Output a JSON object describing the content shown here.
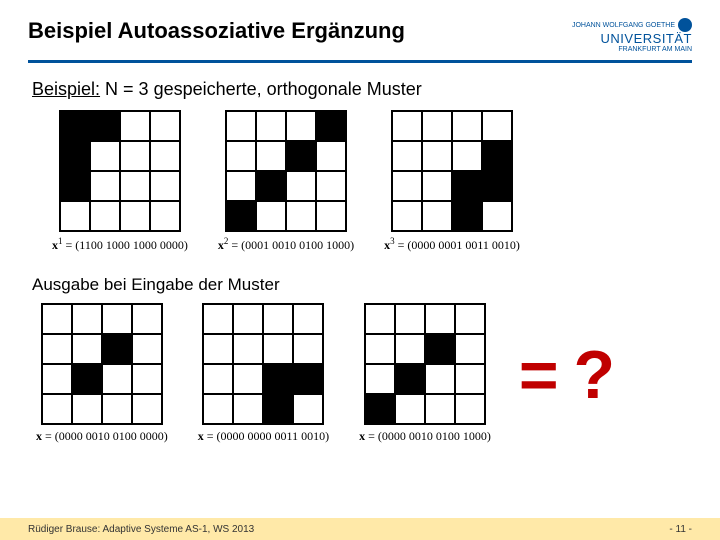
{
  "header": {
    "title": "Beispiel Autoassoziative Ergänzung",
    "logo_line1": "JOHANN WOLFGANG GOETHE",
    "logo_uni": "UNIVERSITÄT",
    "logo_city": "FRANKFURT AM MAIN"
  },
  "subtitle": {
    "label": "Beispiel:",
    "text": " N = 3 gespeicherte, orthogonale Muster"
  },
  "top_grids": [
    {
      "cells": [
        1,
        1,
        0,
        0,
        1,
        0,
        0,
        0,
        1,
        0,
        0,
        0,
        0,
        0,
        0,
        0
      ],
      "caption_pre": "x",
      "caption_sup": "1",
      "caption_post": " = (1100 1000 1000 0000)"
    },
    {
      "cells": [
        0,
        0,
        0,
        1,
        0,
        0,
        1,
        0,
        0,
        1,
        0,
        0,
        1,
        0,
        0,
        0
      ],
      "caption_pre": "x",
      "caption_sup": "2",
      "caption_post": " = (0001 0010 0100 1000)"
    },
    {
      "cells": [
        0,
        0,
        0,
        0,
        0,
        0,
        0,
        1,
        0,
        0,
        1,
        1,
        0,
        0,
        1,
        0
      ],
      "caption_pre": "x",
      "caption_sup": "3",
      "caption_post": " = (0000 0001 0011 0010)"
    }
  ],
  "section2": "Ausgabe bei Eingabe der Muster",
  "bottom_grids": [
    {
      "cells": [
        0,
        0,
        0,
        0,
        0,
        0,
        1,
        0,
        0,
        1,
        0,
        0,
        0,
        0,
        0,
        0
      ],
      "caption": "x = (0000 0010 0100 0000)"
    },
    {
      "cells": [
        0,
        0,
        0,
        0,
        0,
        0,
        0,
        0,
        0,
        0,
        1,
        1,
        0,
        0,
        1,
        0
      ],
      "caption": "x = (0000 0000 0011 0010)"
    },
    {
      "cells": [
        0,
        0,
        0,
        0,
        0,
        0,
        1,
        0,
        0,
        1,
        0,
        0,
        1,
        0,
        0,
        0
      ],
      "caption": "x = (0000 0010 0100 1000)"
    }
  ],
  "question": "= ?",
  "footer": {
    "left": "Rüdiger Brause: Adaptive Systeme AS-1, WS 2013",
    "right": "- 11 -"
  },
  "colors": {
    "rule": "#00529b",
    "question": "#c00000",
    "footer_bg": "#ffe9a8"
  }
}
